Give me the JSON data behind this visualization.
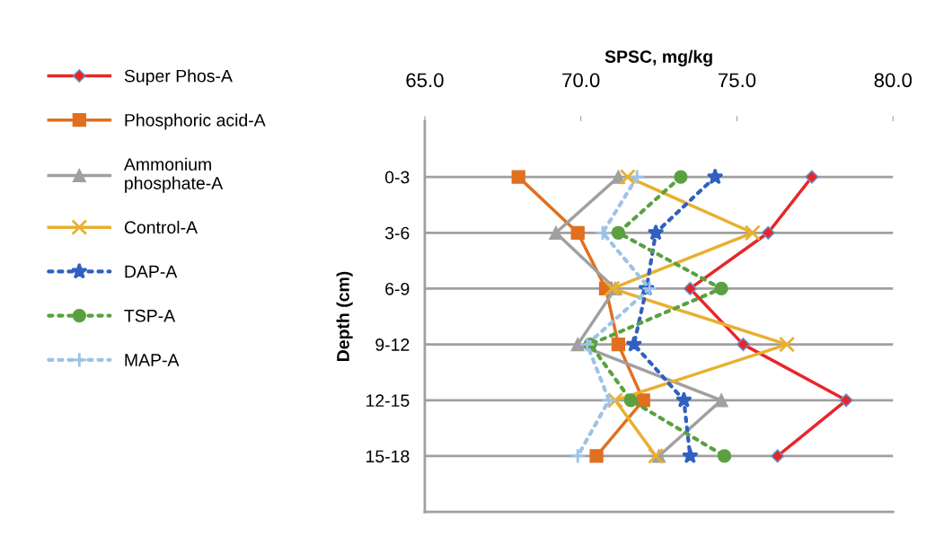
{
  "chart_data": {
    "type": "line",
    "xlabel": "SPSC, mg/kg",
    "ylabel": "Depth (cm)",
    "categories": [
      "0-3",
      "3-6",
      "6-9",
      "9-12",
      "12-15",
      "15-18"
    ],
    "orientation": "horizontal",
    "xlim": [
      65,
      80
    ],
    "xticks": [
      {
        "value": 65,
        "label": "65.0"
      },
      {
        "value": 70,
        "label": "70.0"
      },
      {
        "value": 75,
        "label": "75.0"
      },
      {
        "value": 80,
        "label": "80.0"
      }
    ],
    "grid": "y",
    "legend": "left",
    "series": [
      {
        "name": "Super Phos-A",
        "color": "#e8262a",
        "marker": "diamond",
        "line_style": "solid",
        "values": [
          77.4,
          76.0,
          73.5,
          75.2,
          78.5,
          76.3
        ]
      },
      {
        "name": "Phosphoric acid-A",
        "color": "#e07020",
        "marker": "square",
        "line_style": "solid",
        "values": [
          68.0,
          69.9,
          70.8,
          71.2,
          72.0,
          70.5
        ]
      },
      {
        "name": "Ammonium\nphosphate-A",
        "color": "#a0a0a0",
        "marker": "triangle",
        "line_style": "solid",
        "values": [
          71.2,
          69.2,
          71.1,
          69.9,
          74.5,
          72.5
        ]
      },
      {
        "name": "Control-A",
        "color": "#e8b030",
        "marker": "cross",
        "line_style": "solid",
        "values": [
          71.5,
          75.5,
          71.0,
          76.6,
          71.1,
          72.4
        ]
      },
      {
        "name": "DAP-A",
        "color": "#3060c0",
        "marker": "star",
        "line_style": "dotted",
        "values": [
          74.3,
          72.4,
          72.1,
          71.7,
          73.3,
          73.5
        ]
      },
      {
        "name": "TSP-A",
        "color": "#5aa040",
        "marker": "circle",
        "line_style": "dotted",
        "values": [
          73.2,
          71.2,
          74.5,
          70.3,
          71.6,
          74.6
        ]
      },
      {
        "name": "MAP-A",
        "color": "#9dc3e6",
        "marker": "plus",
        "line_style": "dotted",
        "values": [
          71.8,
          70.7,
          72.2,
          70.2,
          70.9,
          69.9
        ]
      }
    ]
  }
}
